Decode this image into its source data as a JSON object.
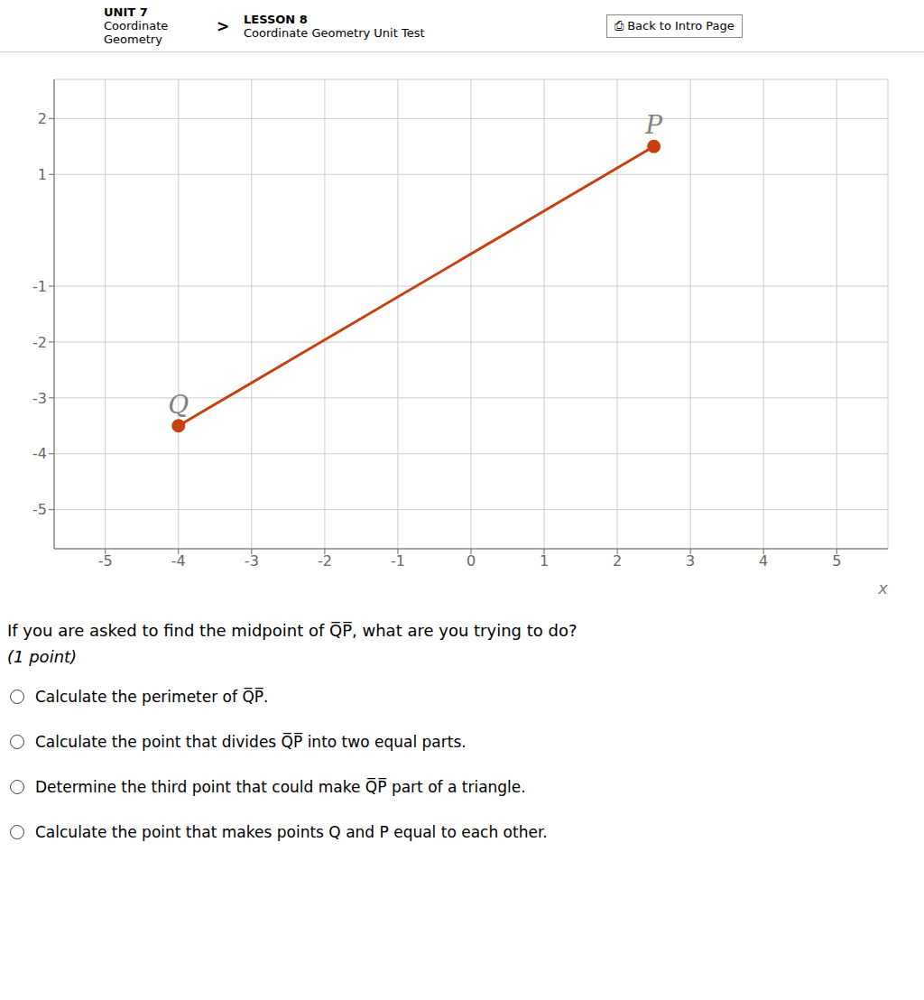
{
  "chart_data": {
    "type": "line",
    "x": [
      -4,
      2.5
    ],
    "values": [
      -3.5,
      1.5
    ],
    "color": "#c84010",
    "marker": "circle",
    "x_label": "x",
    "xlim": [
      -5.7,
      5.7
    ],
    "ylim": [
      -5.7,
      2.7
    ],
    "xticks": [
      -5,
      -4,
      -3,
      -2,
      -1,
      0,
      1,
      2,
      3,
      4,
      5
    ],
    "yticks": [
      -5,
      -4,
      -3,
      -2,
      -1,
      1,
      2
    ],
    "grid": true,
    "annotations": {
      "point_labels": [
        "Q",
        "P"
      ],
      "header": [
        "UNIT 7",
        "Coordinate Geometry",
        ">",
        "LESSON 8",
        "Coordinate Geometry Unit Test",
        "⎙ Back to Intro Page"
      ],
      "question": "If you are asked to find the midpoint of Q̅P̅, what are you trying to do?",
      "points_note": "(1 point)",
      "choices": [
        "Calculate the perimeter of Q̅P̅.",
        "Calculate the point that divides Q̅P̅ into two equal parts.",
        "Determine the third point that could make Q̅P̅ part of a triangle.",
        "Calculate the point that makes points Q and P equal to each other."
      ]
    }
  }
}
